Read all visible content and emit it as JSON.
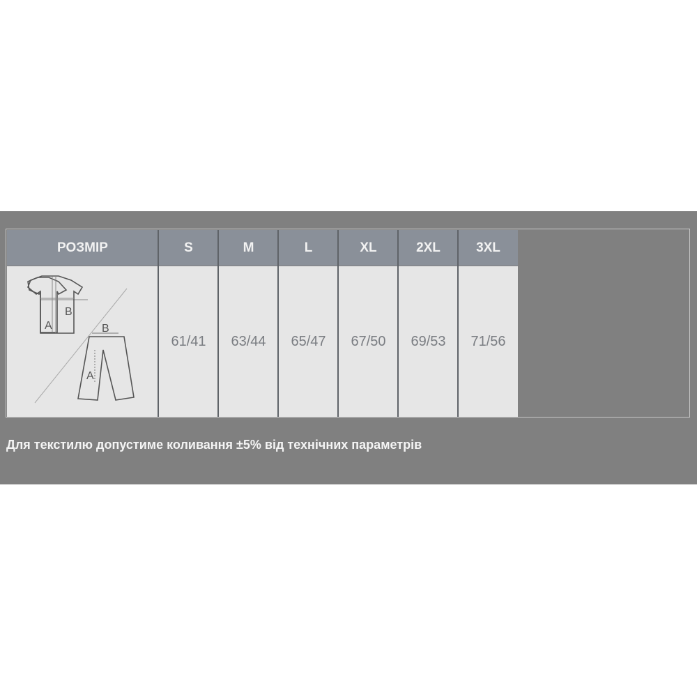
{
  "table": {
    "header_label": "РОЗМІР",
    "sizes": [
      "S",
      "M",
      "L",
      "XL",
      "2XL",
      "3XL"
    ],
    "values": [
      "61/41",
      "63/44",
      "65/47",
      "67/50",
      "69/53",
      "71/56"
    ],
    "diagram_labels": {
      "shirt_a": "A",
      "shirt_b": "B",
      "pants_a": "A",
      "pants_b": "B"
    }
  },
  "note": "Для текстилю допустиме коливання ±5% від технічних параметрів",
  "colors": {
    "band": "#808080",
    "header": "#8a9099",
    "cell": "#e6e6e6"
  }
}
